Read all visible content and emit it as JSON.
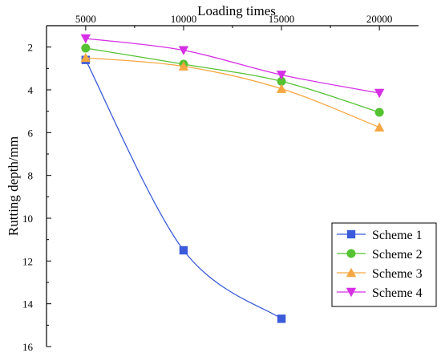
{
  "chart_data": {
    "type": "line",
    "title": "",
    "xlabel": "Loading times",
    "ylabel": "Rutting depth/mm",
    "x_axis_position": "top",
    "y_axis_inverted": true,
    "x": [
      5000,
      10000,
      15000,
      20000
    ],
    "xlim": [
      3000,
      22000
    ],
    "x_ticks": [
      5000,
      10000,
      15000,
      20000
    ],
    "ylim": [
      1,
      16
    ],
    "y_ticks": [
      2,
      4,
      6,
      8,
      10,
      12,
      14,
      16
    ],
    "grid": false,
    "legend_position": "bottom-right",
    "series": [
      {
        "name": "Scheme 1",
        "color": "#3b5bdb",
        "marker": "square",
        "x": [
          5000,
          10000,
          15000
        ],
        "values": [
          2.6,
          11.5,
          14.7
        ]
      },
      {
        "name": "Scheme 2",
        "color": "#55c232",
        "marker": "circle",
        "x": [
          5000,
          10000,
          15000,
          20000
        ],
        "values": [
          2.05,
          2.8,
          3.6,
          5.05
        ]
      },
      {
        "name": "Scheme 3",
        "color": "#f5a742",
        "marker": "triangle-up",
        "x": [
          5000,
          10000,
          15000,
          20000
        ],
        "values": [
          2.5,
          2.9,
          3.95,
          5.75
        ]
      },
      {
        "name": "Scheme 4",
        "color": "#d62fe6",
        "marker": "triangle-down",
        "x": [
          5000,
          10000,
          15000,
          20000
        ],
        "values": [
          1.6,
          2.15,
          3.3,
          4.15
        ]
      }
    ]
  }
}
